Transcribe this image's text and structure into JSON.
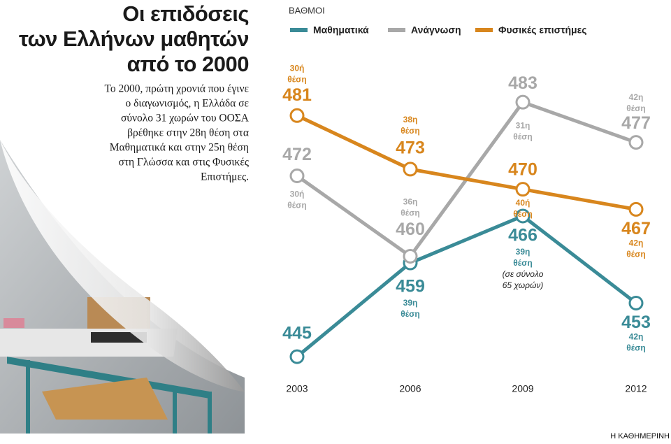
{
  "chart_data": {
    "type": "line",
    "title": [
      "Οι επιδόσεις",
      "των Ελλήνων μαθητών",
      "από το 2000"
    ],
    "subtitle": [
      "Το 2000, πρώτη χρονιά που έγινε",
      "ο διαγωνισμός,  η Ελλάδα σε",
      "σύνολο 31 χωρών του ΟΟΣΑ",
      "βρέθηκε στην 28η θέση στα",
      "Μαθηματικά και στην 25η θέση",
      "στη Γλώσσα και στις Φυσικές",
      "Επιστήμες."
    ],
    "y_axis_label": "ΒΑΘΜΟΙ",
    "categories": [
      "2003",
      "2006",
      "2009",
      "2012"
    ],
    "ylim": [
      440,
      485
    ],
    "series": [
      {
        "name": "Μαθηματικά",
        "color": "#3a8b97",
        "values": [
          445,
          459,
          466,
          453
        ],
        "rank_labels": [
          null,
          [
            "39η",
            "θέση"
          ],
          [
            "39η",
            "θέση",
            "(σε σύνολο",
            "65 χωρών)"
          ],
          [
            "42η",
            "θέση"
          ]
        ]
      },
      {
        "name": "Ανάγνωση",
        "color": "#a8a8a8",
        "values": [
          472,
          460,
          483,
          477
        ],
        "rank_labels": [
          [
            "30ή",
            "θέση"
          ],
          [
            "36η",
            "θέση"
          ],
          [
            "31η",
            "θέση"
          ],
          [
            "42η",
            "θέση"
          ]
        ]
      },
      {
        "name": "Φυσικές επιστήμες",
        "color": "#d8861d",
        "values": [
          481,
          473,
          470,
          467
        ],
        "rank_labels": [
          [
            "30ή",
            "θέση"
          ],
          [
            "38η",
            "θέση"
          ],
          [
            "40ή",
            "θέση"
          ],
          [
            "42η",
            "θέση"
          ]
        ]
      }
    ],
    "source": "Η ΚΑΘΗΜΕΡΙΝΗ"
  }
}
